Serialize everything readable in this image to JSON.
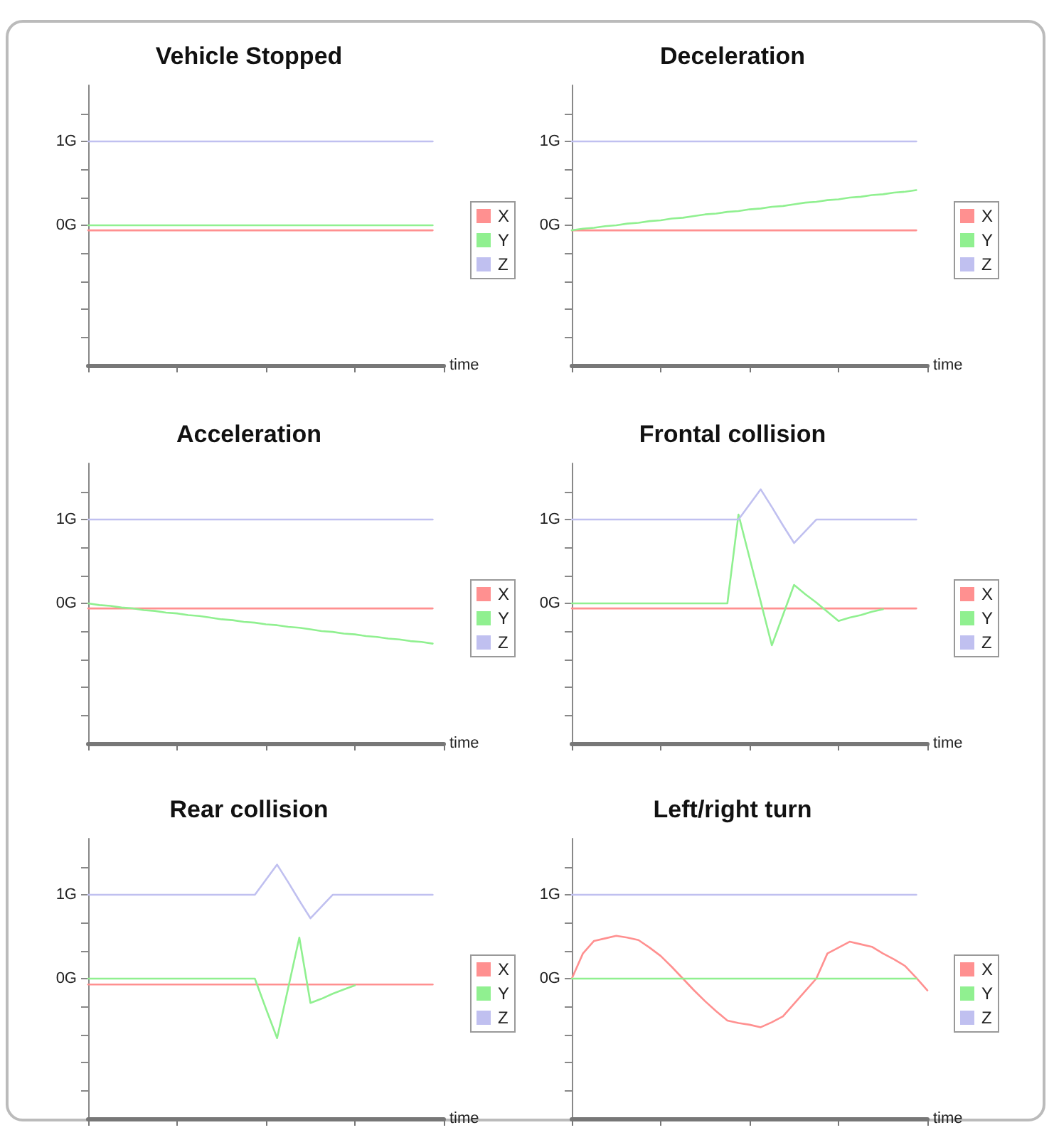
{
  "chart_data": [
    {
      "type": "line",
      "title": "Vehicle Stopped",
      "xlabel": "time",
      "categories": [
        null,
        null,
        null,
        null,
        null,
        null,
        null,
        null,
        null,
        null,
        null,
        null,
        null,
        null,
        null,
        null,
        null,
        null,
        null,
        null,
        null,
        null,
        null,
        null,
        null,
        null,
        null,
        null,
        null,
        null,
        null,
        null,
        null
      ],
      "ylim": [
        -1.67,
        1.67
      ],
      "yticks": [
        {
          "value": -1.33,
          "label": null
        },
        {
          "value": -1,
          "label": null
        },
        {
          "value": -0.67,
          "label": null
        },
        {
          "value": -0.33,
          "label": null
        },
        {
          "value": 0,
          "label": "0G"
        },
        {
          "value": 0.33,
          "label": null
        },
        {
          "value": 0.67,
          "label": null
        },
        {
          "value": 1,
          "label": "1G"
        },
        {
          "value": 1.33,
          "label": null
        }
      ],
      "tick_labels": "y",
      "grid": false,
      "legend": "right",
      "line_style": "solid",
      "series": [
        {
          "name": "X",
          "color": "#ff9090",
          "values": [
            -0.06,
            -0.06,
            -0.06,
            -0.06,
            -0.06,
            -0.06,
            -0.06,
            -0.06,
            -0.06,
            -0.06,
            -0.06,
            -0.06,
            -0.06,
            -0.06,
            -0.06,
            -0.06,
            -0.06,
            -0.06,
            -0.06,
            -0.06,
            -0.06,
            -0.06,
            -0.06,
            -0.06,
            -0.06,
            -0.06,
            -0.06,
            -0.06,
            -0.06,
            -0.06,
            -0.06,
            -0.06,
            null
          ]
        },
        {
          "name": "Y",
          "color": "#90f090",
          "values": [
            0,
            0,
            0,
            0,
            0,
            0,
            0,
            0,
            0,
            0,
            0,
            0,
            0,
            0,
            0,
            0,
            0,
            0,
            0,
            0,
            0,
            0,
            0,
            0,
            0,
            0,
            0,
            0,
            0,
            0,
            0,
            0,
            null
          ]
        },
        {
          "name": "Z",
          "color": "#c0c0f0",
          "values": [
            1,
            1,
            1,
            1,
            1,
            1,
            1,
            1,
            1,
            1,
            1,
            1,
            1,
            1,
            1,
            1,
            1,
            1,
            1,
            1,
            1,
            1,
            1,
            1,
            1,
            1,
            1,
            1,
            1,
            1,
            1,
            1,
            null
          ]
        }
      ]
    },
    {
      "type": "line",
      "title": "Deceleration",
      "xlabel": "time",
      "categories": [
        null,
        null,
        null,
        null,
        null,
        null,
        null,
        null,
        null,
        null,
        null,
        null,
        null,
        null,
        null,
        null,
        null,
        null,
        null,
        null,
        null,
        null,
        null,
        null,
        null,
        null,
        null,
        null,
        null,
        null,
        null,
        null,
        null
      ],
      "ylim": [
        -1.67,
        1.67
      ],
      "yticks": [
        {
          "value": -1.33,
          "label": null
        },
        {
          "value": -1,
          "label": null
        },
        {
          "value": -0.67,
          "label": null
        },
        {
          "value": -0.33,
          "label": null
        },
        {
          "value": 0,
          "label": "0G"
        },
        {
          "value": 0.33,
          "label": null
        },
        {
          "value": 0.67,
          "label": null
        },
        {
          "value": 1,
          "label": "1G"
        },
        {
          "value": 1.33,
          "label": null
        }
      ],
      "tick_labels": "y",
      "grid": false,
      "legend": "right",
      "line_style": "solid",
      "series": [
        {
          "name": "X",
          "color": "#ff9090",
          "values": [
            -0.06,
            -0.06,
            -0.06,
            -0.06,
            -0.06,
            -0.06,
            -0.06,
            -0.06,
            -0.06,
            -0.06,
            -0.06,
            -0.06,
            -0.06,
            -0.06,
            -0.06,
            -0.06,
            -0.06,
            -0.06,
            -0.06,
            -0.06,
            -0.06,
            -0.06,
            -0.06,
            -0.06,
            -0.06,
            -0.06,
            -0.06,
            -0.06,
            -0.06,
            -0.06,
            -0.06,
            -0.06,
            null
          ]
        },
        {
          "name": "Y",
          "color": "#90f090",
          "values": [
            -0.06,
            -0.04,
            -0.03,
            -0.01,
            0,
            0.02,
            0.03,
            0.05,
            0.06,
            0.08,
            0.09,
            0.11,
            0.13,
            0.14,
            0.16,
            0.17,
            0.19,
            0.2,
            0.22,
            0.23,
            0.25,
            0.27,
            0.28,
            0.3,
            0.31,
            0.33,
            0.34,
            0.36,
            0.37,
            0.39,
            0.4,
            0.42,
            null
          ]
        },
        {
          "name": "Z",
          "color": "#c0c0f0",
          "values": [
            1,
            1,
            1,
            1,
            1,
            1,
            1,
            1,
            1,
            1,
            1,
            1,
            1,
            1,
            1,
            1,
            1,
            1,
            1,
            1,
            1,
            1,
            1,
            1,
            1,
            1,
            1,
            1,
            1,
            1,
            1,
            1,
            null
          ]
        }
      ]
    },
    {
      "type": "line",
      "title": "Acceleration",
      "xlabel": "time",
      "categories": [
        null,
        null,
        null,
        null,
        null,
        null,
        null,
        null,
        null,
        null,
        null,
        null,
        null,
        null,
        null,
        null,
        null,
        null,
        null,
        null,
        null,
        null,
        null,
        null,
        null,
        null,
        null,
        null,
        null,
        null,
        null,
        null,
        null
      ],
      "ylim": [
        -1.67,
        1.67
      ],
      "yticks": [
        {
          "value": -1.33,
          "label": null
        },
        {
          "value": -1,
          "label": null
        },
        {
          "value": -0.67,
          "label": null
        },
        {
          "value": -0.33,
          "label": null
        },
        {
          "value": 0,
          "label": "0G"
        },
        {
          "value": 0.33,
          "label": null
        },
        {
          "value": 0.67,
          "label": null
        },
        {
          "value": 1,
          "label": "1G"
        },
        {
          "value": 1.33,
          "label": null
        }
      ],
      "tick_labels": "y",
      "grid": false,
      "legend": "right",
      "line_style": "solid",
      "series": [
        {
          "name": "X",
          "color": "#ff9090",
          "values": [
            -0.06,
            -0.06,
            -0.06,
            -0.06,
            -0.06,
            -0.06,
            -0.06,
            -0.06,
            -0.06,
            -0.06,
            -0.06,
            -0.06,
            -0.06,
            -0.06,
            -0.06,
            -0.06,
            -0.06,
            -0.06,
            -0.06,
            -0.06,
            -0.06,
            -0.06,
            -0.06,
            -0.06,
            -0.06,
            -0.06,
            -0.06,
            -0.06,
            -0.06,
            -0.06,
            -0.06,
            -0.06,
            null
          ]
        },
        {
          "name": "Y",
          "color": "#90f090",
          "values": [
            0,
            -0.02,
            -0.03,
            -0.05,
            -0.06,
            -0.08,
            -0.09,
            -0.11,
            -0.12,
            -0.14,
            -0.15,
            -0.17,
            -0.19,
            -0.2,
            -0.22,
            -0.23,
            -0.25,
            -0.26,
            -0.28,
            -0.29,
            -0.31,
            -0.33,
            -0.34,
            -0.36,
            -0.37,
            -0.39,
            -0.4,
            -0.42,
            -0.43,
            -0.45,
            -0.46,
            -0.48,
            null
          ]
        },
        {
          "name": "Z",
          "color": "#c0c0f0",
          "values": [
            1,
            1,
            1,
            1,
            1,
            1,
            1,
            1,
            1,
            1,
            1,
            1,
            1,
            1,
            1,
            1,
            1,
            1,
            1,
            1,
            1,
            1,
            1,
            1,
            1,
            1,
            1,
            1,
            1,
            1,
            1,
            1,
            null
          ]
        }
      ]
    },
    {
      "type": "line",
      "title": "Frontal collision",
      "xlabel": "time",
      "categories": [
        null,
        null,
        null,
        null,
        null,
        null,
        null,
        null,
        null,
        null,
        null,
        null,
        null,
        null,
        null,
        null,
        null,
        null,
        null,
        null,
        null,
        null,
        null,
        null,
        null,
        null,
        null,
        null,
        null,
        null,
        null,
        null,
        null
      ],
      "ylim": [
        -1.67,
        1.67
      ],
      "yticks": [
        {
          "value": -1.33,
          "label": null
        },
        {
          "value": -1,
          "label": null
        },
        {
          "value": -0.67,
          "label": null
        },
        {
          "value": -0.33,
          "label": null
        },
        {
          "value": 0,
          "label": "0G"
        },
        {
          "value": 0.33,
          "label": null
        },
        {
          "value": 0.67,
          "label": null
        },
        {
          "value": 1,
          "label": "1G"
        },
        {
          "value": 1.33,
          "label": null
        }
      ],
      "tick_labels": "y",
      "grid": false,
      "legend": "right",
      "line_style": "solid",
      "series": [
        {
          "name": "X",
          "color": "#ff9090",
          "values": [
            -0.06,
            -0.06,
            -0.06,
            -0.06,
            -0.06,
            -0.06,
            -0.06,
            -0.06,
            -0.06,
            -0.06,
            -0.06,
            -0.06,
            -0.06,
            -0.06,
            -0.06,
            -0.06,
            -0.06,
            -0.06,
            -0.06,
            -0.06,
            -0.06,
            -0.06,
            -0.06,
            -0.06,
            -0.06,
            -0.06,
            -0.06,
            -0.06,
            -0.06,
            -0.06,
            -0.06,
            -0.06,
            null
          ]
        },
        {
          "name": "Y",
          "color": "#90f090",
          "values": [
            0,
            0,
            0,
            0,
            0,
            0,
            0,
            0,
            0,
            0,
            0,
            0,
            0,
            0,
            0,
            1.06,
            0.54,
            0.02,
            -0.5,
            -0.14,
            0.22,
            0.11,
            0.01,
            -0.1,
            -0.21,
            -0.17,
            -0.14,
            -0.1,
            -0.07,
            null,
            null,
            null,
            null
          ]
        },
        {
          "name": "Z",
          "color": "#c0c0f0",
          "values": [
            1,
            1,
            1,
            1,
            1,
            1,
            1,
            1,
            1,
            1,
            1,
            1,
            1,
            1,
            1,
            1,
            1.18,
            1.36,
            1.15,
            0.93,
            0.72,
            0.86,
            1,
            1,
            1,
            1,
            1,
            1,
            1,
            1,
            1,
            1,
            null
          ]
        }
      ]
    },
    {
      "type": "line",
      "title": "Rear collision",
      "xlabel": "time",
      "categories": [
        null,
        null,
        null,
        null,
        null,
        null,
        null,
        null,
        null,
        null,
        null,
        null,
        null,
        null,
        null,
        null,
        null,
        null,
        null,
        null,
        null,
        null,
        null,
        null,
        null,
        null,
        null,
        null,
        null,
        null,
        null,
        null,
        null
      ],
      "ylim": [
        -1.67,
        1.67
      ],
      "yticks": [
        {
          "value": -1.33,
          "label": null
        },
        {
          "value": -1,
          "label": null
        },
        {
          "value": -0.67,
          "label": null
        },
        {
          "value": -0.33,
          "label": null
        },
        {
          "value": 0,
          "label": "0G"
        },
        {
          "value": 0.33,
          "label": null
        },
        {
          "value": 0.67,
          "label": null
        },
        {
          "value": 1,
          "label": "1G"
        },
        {
          "value": 1.33,
          "label": null
        }
      ],
      "tick_labels": "y",
      "grid": false,
      "legend": "right",
      "line_style": "solid",
      "series": [
        {
          "name": "X",
          "color": "#ff9090",
          "values": [
            -0.07,
            -0.07,
            -0.07,
            -0.07,
            -0.07,
            -0.07,
            -0.07,
            -0.07,
            -0.07,
            -0.07,
            -0.07,
            -0.07,
            -0.07,
            -0.07,
            -0.07,
            -0.07,
            -0.07,
            -0.07,
            -0.07,
            -0.07,
            -0.07,
            -0.07,
            -0.07,
            -0.07,
            -0.07,
            -0.07,
            -0.07,
            -0.07,
            -0.07,
            -0.07,
            -0.07,
            -0.07,
            null
          ]
        },
        {
          "name": "Y",
          "color": "#90f090",
          "values": [
            0,
            0,
            0,
            0,
            0,
            0,
            0,
            0,
            0,
            0,
            0,
            0,
            0,
            0,
            0,
            0,
            -0.36,
            -0.71,
            -0.11,
            0.49,
            -0.29,
            -0.24,
            -0.18,
            -0.13,
            -0.08,
            null,
            null,
            null,
            null,
            null,
            null,
            null,
            null
          ]
        },
        {
          "name": "Z",
          "color": "#c0c0f0",
          "values": [
            1,
            1,
            1,
            1,
            1,
            1,
            1,
            1,
            1,
            1,
            1,
            1,
            1,
            1,
            1,
            1,
            1.18,
            1.36,
            1.15,
            0.93,
            0.72,
            0.86,
            1,
            1,
            1,
            1,
            1,
            1,
            1,
            1,
            1,
            1,
            null
          ]
        }
      ]
    },
    {
      "type": "line",
      "title": "Left/right turn",
      "xlabel": "time",
      "categories": [
        null,
        null,
        null,
        null,
        null,
        null,
        null,
        null,
        null,
        null,
        null,
        null,
        null,
        null,
        null,
        null,
        null,
        null,
        null,
        null,
        null,
        null,
        null,
        null,
        null,
        null,
        null,
        null,
        null,
        null,
        null,
        null,
        null
      ],
      "ylim": [
        -1.67,
        1.67
      ],
      "yticks": [
        {
          "value": -1.33,
          "label": null
        },
        {
          "value": -1,
          "label": null
        },
        {
          "value": -0.67,
          "label": null
        },
        {
          "value": -0.33,
          "label": null
        },
        {
          "value": 0,
          "label": "0G"
        },
        {
          "value": 0.33,
          "label": null
        },
        {
          "value": 0.67,
          "label": null
        },
        {
          "value": 1,
          "label": "1G"
        },
        {
          "value": 1.33,
          "label": null
        }
      ],
      "tick_labels": "y",
      "grid": false,
      "legend": "right",
      "line_style": "solid",
      "series": [
        {
          "name": "X",
          "color": "#ff9090",
          "values": [
            0,
            0.3,
            0.45,
            0.48,
            0.51,
            0.49,
            0.46,
            0.37,
            0.27,
            0.14,
            0,
            -0.14,
            -0.27,
            -0.39,
            -0.5,
            -0.53,
            -0.55,
            -0.58,
            -0.52,
            -0.45,
            -0.3,
            -0.15,
            0,
            0.3,
            0.37,
            0.44,
            0.41,
            0.38,
            0.3,
            0.23,
            0.15,
            0.01,
            -0.14
          ]
        },
        {
          "name": "Y",
          "color": "#90f090",
          "values": [
            0,
            0,
            0,
            0,
            0,
            0,
            0,
            0,
            0,
            0,
            0,
            0,
            0,
            0,
            0,
            0,
            0,
            0,
            0,
            0,
            0,
            0,
            0,
            0,
            0,
            0,
            0,
            0,
            0,
            0,
            0,
            0,
            null
          ]
        },
        {
          "name": "Z",
          "color": "#c0c0f0",
          "values": [
            1,
            1,
            1,
            1,
            1,
            1,
            1,
            1,
            1,
            1,
            1,
            1,
            1,
            1,
            1,
            1,
            1,
            1,
            1,
            1,
            1,
            1,
            1,
            1,
            1,
            1,
            1,
            1,
            1,
            1,
            1,
            1,
            null
          ]
        }
      ]
    }
  ]
}
